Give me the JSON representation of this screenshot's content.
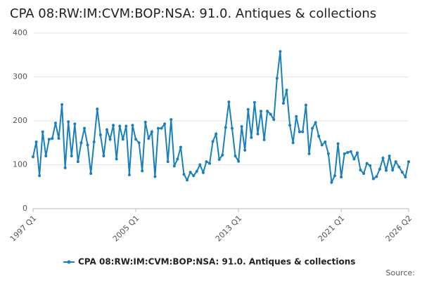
{
  "chart_data": {
    "type": "line",
    "title": "CPA 08:RW:IM:CVM:BOP:NSA: 91.0. Antiques & collections",
    "source": "Source:",
    "categories": [
      "1997 Q1",
      null,
      null,
      null,
      null,
      null,
      null,
      null,
      null,
      null,
      null,
      null,
      null,
      null,
      null,
      null,
      null,
      null,
      null,
      null,
      null,
      null,
      null,
      null,
      null,
      null,
      null,
      null,
      null,
      null,
      null,
      null,
      "2005 Q1",
      null,
      null,
      null,
      null,
      null,
      null,
      null,
      null,
      null,
      null,
      null,
      null,
      null,
      null,
      null,
      null,
      null,
      null,
      null,
      null,
      null,
      null,
      null,
      null,
      null,
      null,
      null,
      null,
      null,
      null,
      null,
      "2013 Q1",
      null,
      null,
      null,
      null,
      null,
      null,
      null,
      null,
      null,
      null,
      null,
      null,
      null,
      null,
      null,
      null,
      null,
      null,
      null,
      null,
      null,
      null,
      null,
      null,
      null,
      null,
      null,
      null,
      null,
      null,
      null,
      "2021 Q1",
      null,
      null,
      null,
      null,
      null,
      null,
      null,
      null,
      null,
      null,
      null,
      null,
      null,
      null,
      null,
      null,
      null,
      null,
      null,
      null,
      "2026 Q2"
    ],
    "series": [
      {
        "name": "CPA 08:RW:IM:CVM:BOP:NSA: 91.0. Antiques & collections",
        "color": "#1a80bb",
        "values": [
          118,
          152,
          75,
          175,
          120,
          158,
          160,
          195,
          160,
          237,
          93,
          198,
          120,
          193,
          107,
          150,
          183,
          145,
          80,
          152,
          227,
          168,
          120,
          180,
          158,
          190,
          113,
          188,
          158,
          188,
          77,
          190,
          158,
          150,
          86,
          197,
          160,
          175,
          73,
          183,
          183,
          193,
          107,
          203,
          97,
          113,
          140,
          78,
          65,
          83,
          75,
          85,
          100,
          82,
          107,
          103,
          153,
          170,
          112,
          122,
          185,
          243,
          183,
          120,
          108,
          187,
          133,
          226,
          162,
          242,
          170,
          222,
          157,
          222,
          215,
          203,
          297,
          358,
          240,
          270,
          190,
          150,
          210,
          175,
          175,
          236,
          125,
          183,
          196,
          165,
          145,
          152,
          125,
          60,
          75,
          148,
          72,
          125,
          128,
          130,
          113,
          127,
          88,
          80,
          103,
          98,
          68,
          73,
          90,
          115,
          87,
          120,
          88,
          107,
          95,
          83,
          72,
          107
        ]
      }
    ],
    "ylim": [
      0,
      400
    ],
    "yticks": [
      0,
      100,
      200,
      300,
      400
    ],
    "grid": true
  }
}
